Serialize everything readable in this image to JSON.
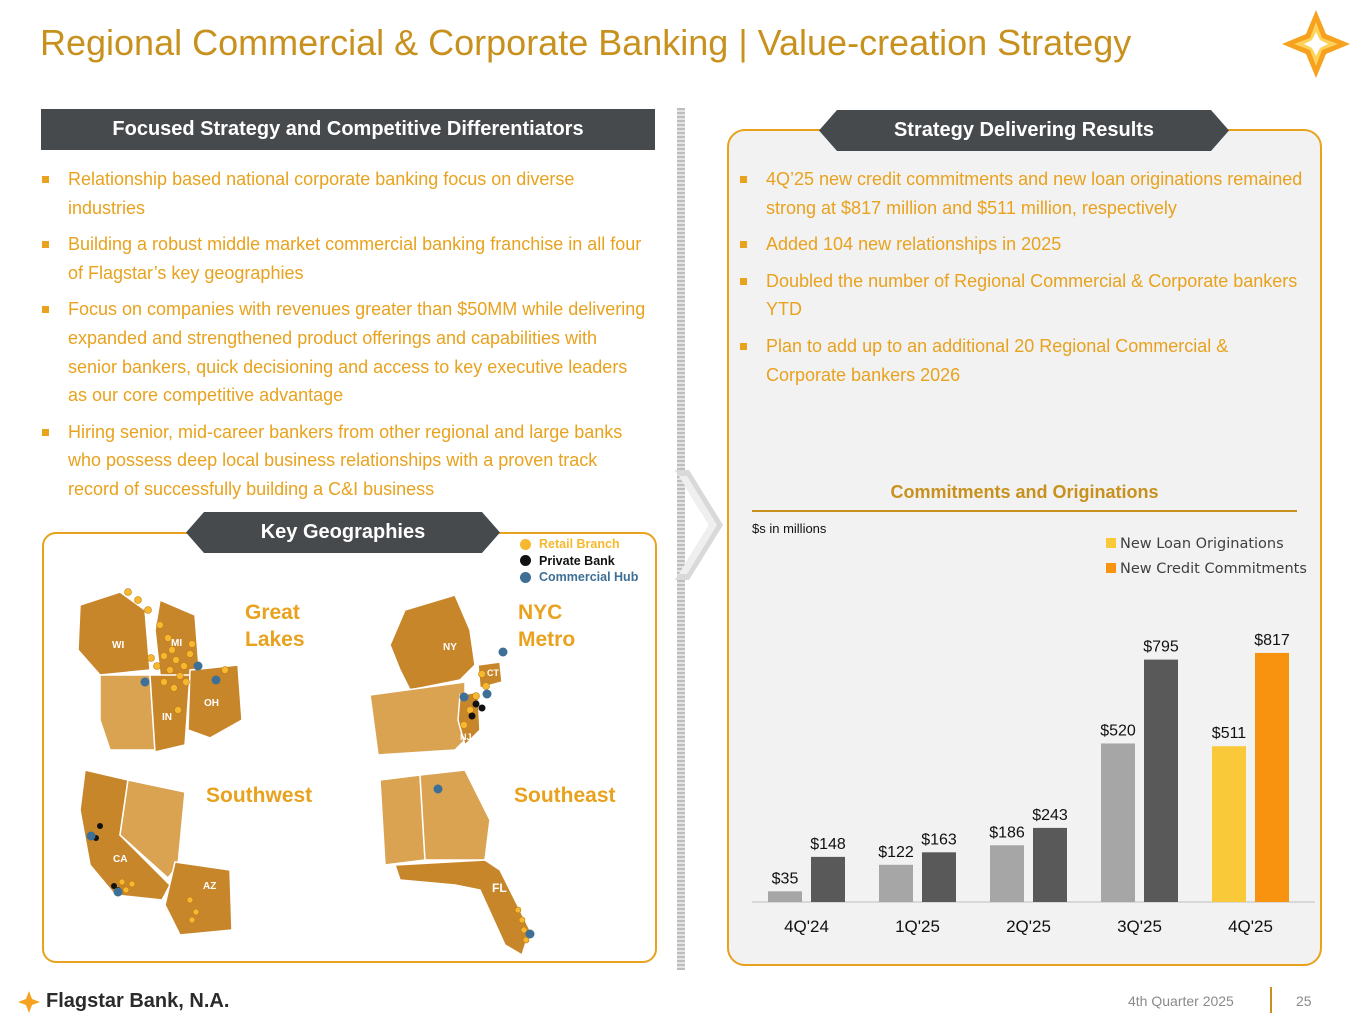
{
  "title": "Regional Commercial & Corporate Banking | Value-creation Strategy",
  "colors": {
    "gold": "#C8911E",
    "orange": "#E8A21E",
    "dark": "#474A4D"
  },
  "left_section": {
    "header": "Focused Strategy and Competitive Differentiators",
    "bullets": [
      "Relationship based national corporate banking focus on diverse industries",
      "Building a robust middle market commercial banking franchise in all four of Flagstar’s key geographies",
      "Focus on companies with revenues greater than $50MM while delivering expanded and strengthened product offerings and capabilities with senior bankers, quick decisioning and access to key executive leaders as our core competitive advantage",
      "Hiring senior, mid-career bankers from other regional and large banks who possess deep local business relationships with a proven track record of successfully building a C&I business"
    ]
  },
  "right_section": {
    "header": "Strategy Delivering Results",
    "bullets": [
      "4Q’25 new credit commitments and new loan originations remained strong at $817 million and $511 million, respectively",
      "Added 104 new relationships in 2025",
      "Doubled the number of Regional Commercial & Corporate bankers YTD",
      "Plan to add up to an additional 20 Regional Commercial & Corporate bankers 2026"
    ]
  },
  "geographies": {
    "header": "Key Geographies",
    "legend": [
      {
        "label": "Retail Branch",
        "color": "#F5B82E"
      },
      {
        "label": "Private Bank",
        "color": "#111111"
      },
      {
        "label": "Commercial Hub",
        "color": "#3E6F96"
      }
    ],
    "regions": {
      "great_lakes": "Great\nLakes",
      "nyc_metro": "NYC\nMetro",
      "southwest": "Southwest",
      "southeast": "Southeast"
    },
    "states": [
      "WI",
      "MI",
      "IN",
      "OH",
      "NY",
      "CT",
      "NJ",
      "CA",
      "AZ",
      "FL"
    ]
  },
  "chart_data": {
    "type": "bar",
    "title": "Commitments and Originations",
    "units": "$s in millions",
    "categories": [
      "4Q'24",
      "1Q'25",
      "2Q'25",
      "3Q'25",
      "4Q'25"
    ],
    "series": [
      {
        "name": "New Loan Originations",
        "values": [
          35,
          122,
          186,
          520,
          511
        ],
        "labels": [
          "$35",
          "$122",
          "$186",
          "$520",
          "$511"
        ]
      },
      {
        "name": "New Credit Commitments",
        "values": [
          148,
          163,
          243,
          795,
          817
        ],
        "labels": [
          "$148",
          "$163",
          "$243",
          "$795",
          "$817"
        ]
      }
    ],
    "legend_position": "top-right",
    "ylim": [
      0,
      820
    ],
    "grid": false,
    "bar_colors": {
      "history_originations": "#A6A6A6",
      "history_commitments": "#595959",
      "latest_originations": "#F9C93A",
      "latest_commitments": "#F7930E"
    }
  },
  "footer": {
    "brand": "Flagstar Bank, N.A.",
    "period": "4th Quarter 2025",
    "page": "25"
  }
}
